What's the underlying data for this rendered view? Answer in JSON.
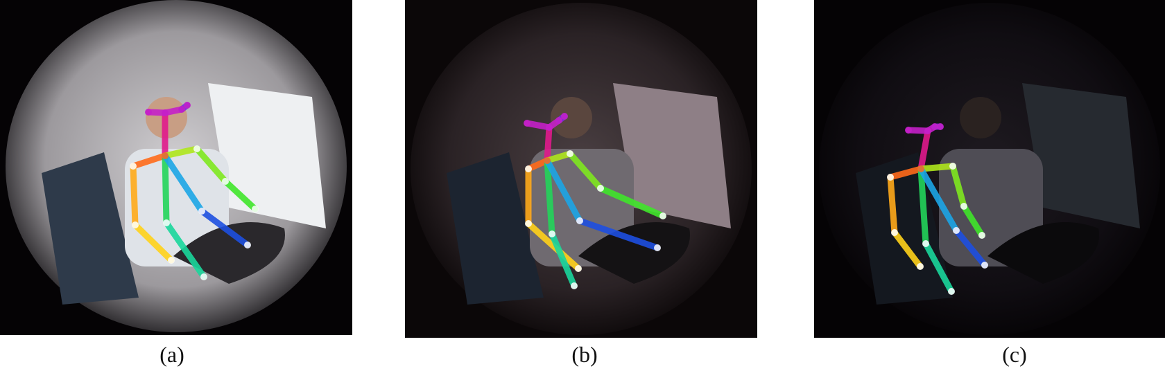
{
  "figure": {
    "panels": [
      {
        "caption": "(a)",
        "lighting": "daylight",
        "bg": "#050305",
        "fisheye_fill": "#b7b4b7",
        "fisheye_dark": "#3b3a40",
        "window_fill": "#e8ebee",
        "bone_opacity": 1.0
      },
      {
        "caption": "(b)",
        "lighting": "dusk",
        "bg": "#0b0708",
        "fisheye_fill": "#3a3133",
        "fisheye_dark": "#120e10",
        "window_fill": "#8e7f86",
        "bone_opacity": 1.0
      },
      {
        "caption": "(c)",
        "lighting": "night",
        "bg": "#050305",
        "fisheye_fill": "#17141a",
        "fisheye_dark": "#070609",
        "window_fill": "#262a30",
        "bone_opacity": 1.0
      }
    ],
    "skeleton_colors": {
      "head": "#e0198c",
      "face": "#c420c8",
      "face_end": "#7a2be0",
      "shoulder_right": "#ff6a1a",
      "arm_right_upper": "#ffaa1a",
      "arm_right_lower": "#ffd21a",
      "shoulder_left": "#aee51c",
      "arm_left_upper": "#7ee81f",
      "arm_left_lower": "#3fe52a",
      "torso_right": "#22d45a",
      "leg_right": "#19d69b",
      "torso_left": "#1ca5e5",
      "leg_left": "#1d4fe0"
    }
  }
}
